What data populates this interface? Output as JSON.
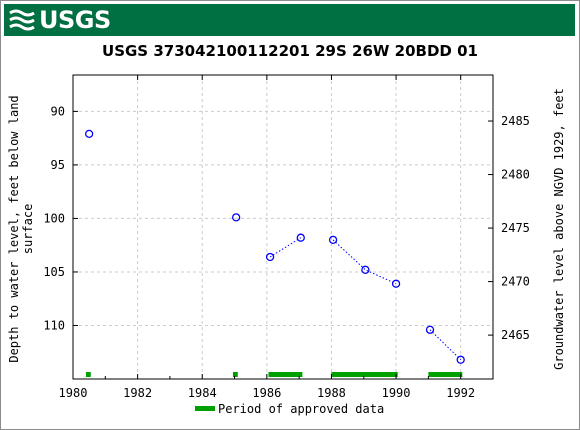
{
  "header": {
    "logo_text": "USGS",
    "banner_color": "#006f41"
  },
  "chart_data": {
    "type": "scatter",
    "title": "USGS 373042100112201 29S 26W 20BDD 01",
    "xlabel": "",
    "ylabel_left": "Depth to water level, feet below land surface",
    "ylabel_left_lines": [
      "Depth to water level, feet below land",
      "surface"
    ],
    "ylabel_right": "Groundwater level above NGVD 1929, feet",
    "xlim": [
      1980,
      1993
    ],
    "ylim_left": [
      115,
      86.6
    ],
    "ylim_right": [
      2460.9,
      2489.3
    ],
    "datum_offset": 2575.9,
    "x_ticks": [
      1980,
      1982,
      1984,
      1986,
      1988,
      1990,
      1992
    ],
    "x_tick_labels": [
      "1980",
      "1982",
      "1984",
      "1986",
      "1988",
      "1990",
      "1992"
    ],
    "y_left_ticks": [
      90,
      95,
      100,
      105,
      110
    ],
    "y_left_tick_labels": [
      "90",
      "95",
      "100",
      "105",
      "110"
    ],
    "y_right_ticks": [
      2465,
      2470,
      2475,
      2480,
      2485
    ],
    "y_right_tick_labels": [
      "2465",
      "2470",
      "2475",
      "2480",
      "2485"
    ],
    "series": [
      {
        "color": "#0000ff",
        "points": [
          {
            "x": 1980.5,
            "y": 92.1
          },
          {
            "x": 1985.05,
            "y": 99.9
          },
          {
            "x": 1986.1,
            "y": 103.6
          },
          {
            "x": 1987.05,
            "y": 101.8
          },
          {
            "x": 1988.05,
            "y": 102.0
          },
          {
            "x": 1989.05,
            "y": 104.8
          },
          {
            "x": 1990.0,
            "y": 106.1
          },
          {
            "x": 1991.05,
            "y": 110.4
          },
          {
            "x": 1992.0,
            "y": 113.2
          }
        ],
        "connected_segments": [
          [
            2,
            3
          ],
          [
            4,
            5,
            6
          ],
          [
            7,
            8
          ]
        ]
      }
    ],
    "approved_periods": [
      [
        1980.4,
        1980.55
      ],
      [
        1984.95,
        1985.1
      ],
      [
        1986.05,
        1987.1
      ],
      [
        1988.0,
        1990.05
      ],
      [
        1991.0,
        1992.05
      ]
    ],
    "approved_color": "#00a000",
    "legend": {
      "label": "Period of approved data",
      "position": "bottom-center"
    },
    "grid": true
  }
}
